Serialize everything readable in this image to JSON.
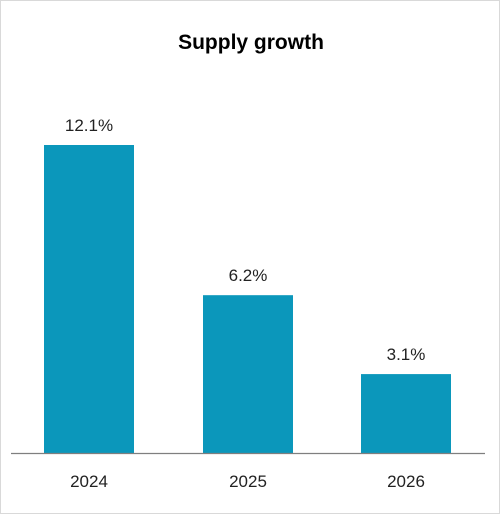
{
  "chart_data": {
    "type": "bar",
    "title": "Supply growth",
    "categories": [
      "2024",
      "2025",
      "2026"
    ],
    "values": [
      12.1,
      6.2,
      3.1
    ],
    "data_labels": [
      "12.1%",
      "6.2%",
      "3.1%"
    ],
    "xlabel": "",
    "ylabel": "",
    "ylim": [
      0,
      13.2
    ],
    "grid": false,
    "legend": "none",
    "bar_color": "#0b97bb",
    "axis_color": "#7f7f7f"
  }
}
